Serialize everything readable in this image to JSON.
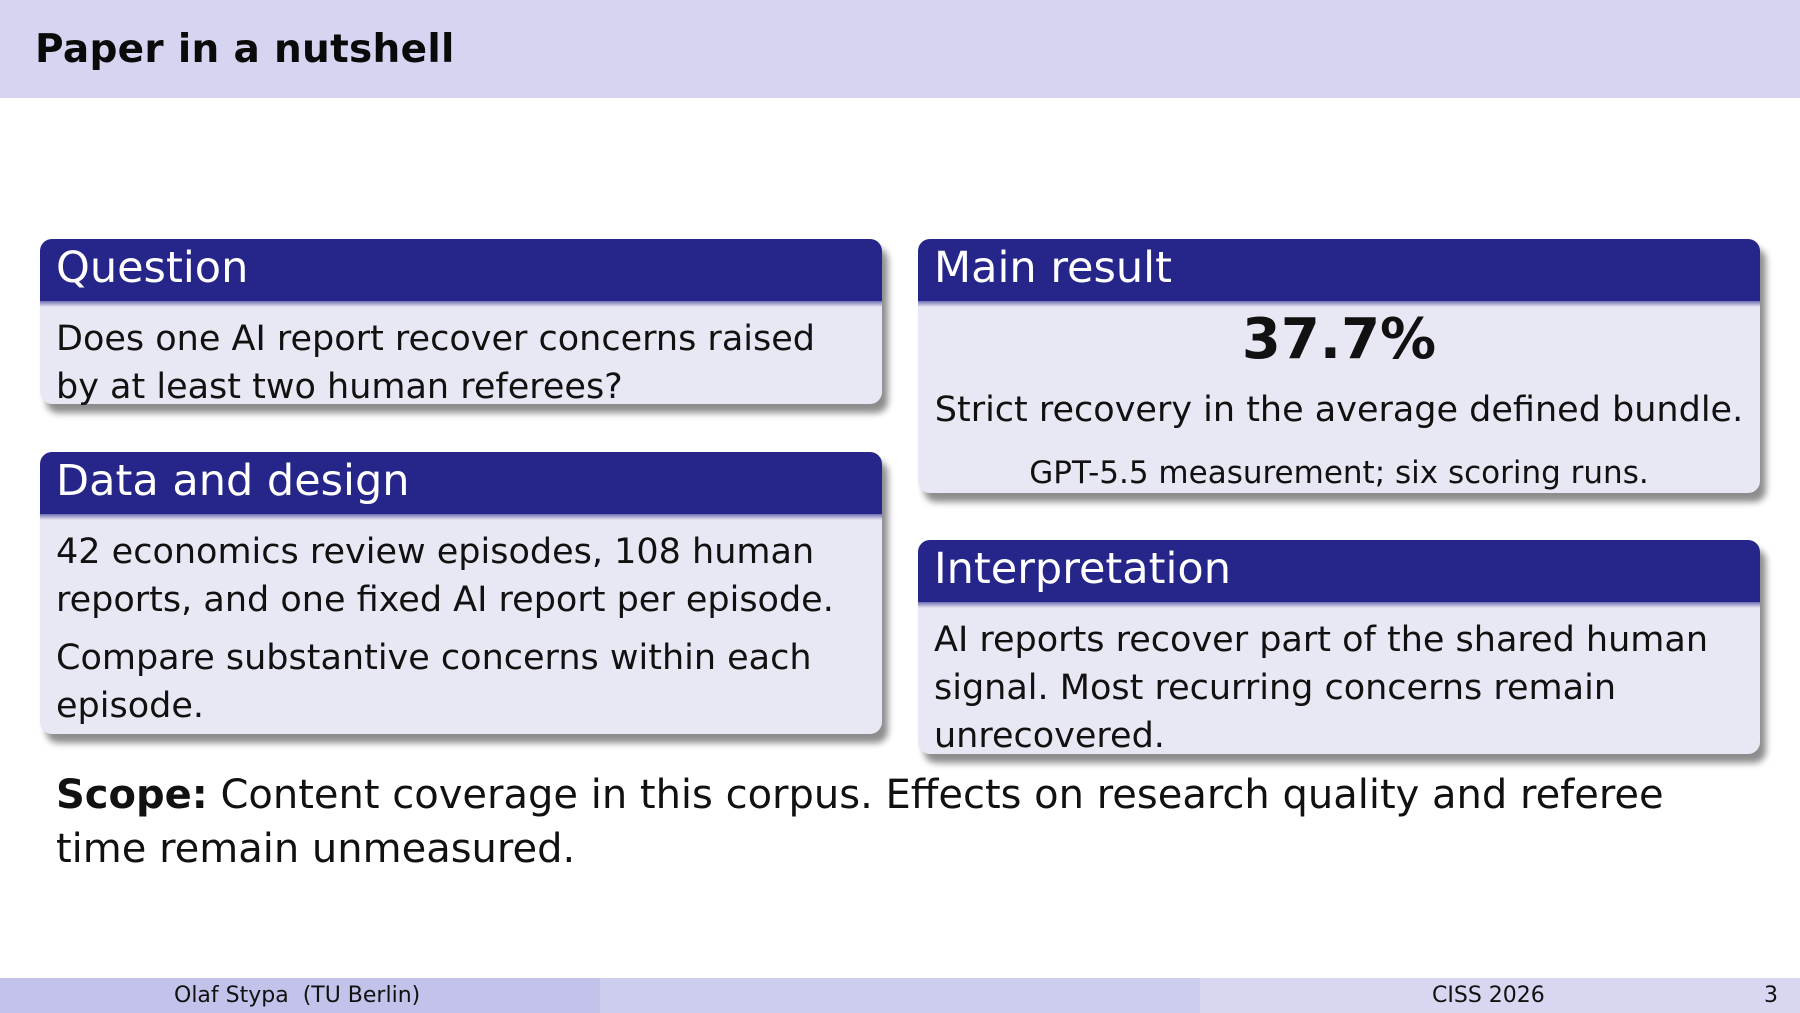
{
  "slide": {
    "title": "Paper in a nutshell"
  },
  "blocks": {
    "question": {
      "title": "Question",
      "text": "Does one AI report recover concerns raised by at least two human referees?"
    },
    "data_design": {
      "title": "Data and design",
      "para1": "42 economics review episodes, 108 human reports, and one fixed AI report per episode.",
      "para2": "Compare substantive concerns within each episode."
    },
    "main_result": {
      "title": "Main result",
      "value": "37.7%",
      "description": "Strict recovery in the average defined bundle.",
      "note": "GPT-5.5 measurement; six scoring runs."
    },
    "interpretation": {
      "title": "Interpretation",
      "text": "AI reports recover part of the shared human signal. Most recurring concerns remain unrecovered."
    }
  },
  "scope": {
    "label": "Scope:",
    "text": "Content coverage in this corpus. Effects on research quality and referee time remain unmeasured."
  },
  "footer": {
    "author": "Olaf Stypa  (TU Berlin)",
    "event": "CISS 2026",
    "page": "3"
  }
}
